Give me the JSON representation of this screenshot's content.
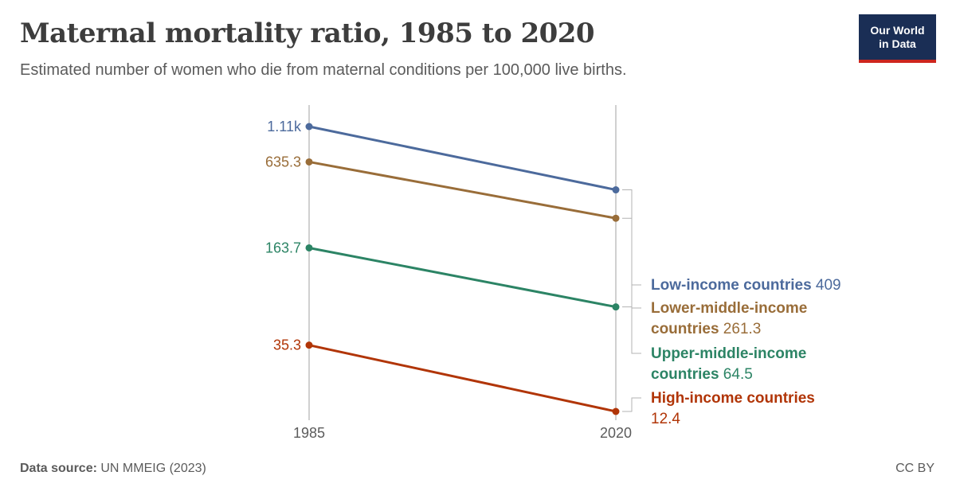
{
  "header": {
    "title": "Maternal mortality ratio, 1985 to 2020",
    "subtitle": "Estimated number of women who die from maternal conditions per 100,000 live births."
  },
  "logo": {
    "line1": "Our World",
    "line2": "in Data",
    "bg_color": "#1a2e55",
    "accent_color": "#ce261e"
  },
  "footer": {
    "source_label": "Data source:",
    "source_value": "UN MMEIG (2023)",
    "license": "CC BY"
  },
  "chart_data": {
    "type": "line",
    "x": [
      "1985",
      "2020"
    ],
    "x_labels": [
      "1985",
      "2020"
    ],
    "ylim": [
      0,
      1110
    ],
    "grid": false,
    "legend": "right-end-labels",
    "series": [
      {
        "name": "Low-income countries",
        "values": [
          1110,
          409
        ],
        "start_label": "1.11k",
        "end_label": "409",
        "name_lines": [
          "Low-income countries"
        ],
        "color": "#4c6a9c"
      },
      {
        "name": "Lower-middle-income countries",
        "values": [
          635.3,
          261.3
        ],
        "start_label": "635.3",
        "end_label": "261.3",
        "name_lines": [
          "Lower-middle-income",
          "countries"
        ],
        "color": "#996d39"
      },
      {
        "name": "Upper-middle-income countries",
        "values": [
          163.7,
          64.5
        ],
        "start_label": "163.7",
        "end_label": "64.5",
        "name_lines": [
          "Upper-middle-income",
          "countries"
        ],
        "color": "#2c8465"
      },
      {
        "name": "High-income countries",
        "values": [
          35.3,
          12.4
        ],
        "start_label": "35.3",
        "end_label": "12.4",
        "name_lines": [
          "High-income countries"
        ],
        "color": "#b13507"
      }
    ]
  }
}
